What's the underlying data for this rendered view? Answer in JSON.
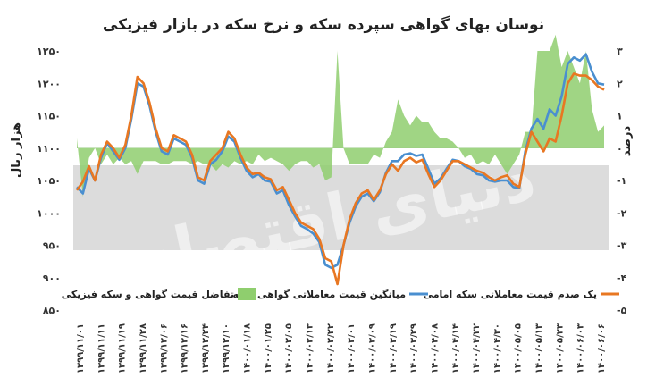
{
  "chart_data": {
    "type": "line",
    "title": "نوسان بهای گواهی سپرده سکه و نرخ سکه در بازار فیزیکی",
    "ylabel_left": "هزار ریال",
    "ylabel_right": "درصد",
    "ylim_left": [
      850,
      1250
    ],
    "ylim_right": [
      -5,
      3
    ],
    "yticks_left": [
      "۸۵۰",
      "۹۰۰",
      "۹۵۰",
      "۱۰۰۰",
      "۱۰۵۰",
      "۱۱۰۰",
      "۱۱۵۰",
      "۱۲۰۰",
      "۱۲۵۰"
    ],
    "yticks_right": [
      "-۵",
      "-۴",
      "-۳",
      "-۲",
      "-۱",
      "۰",
      "۱",
      "۲",
      "۳"
    ],
    "x_tick_labels": [
      "۱۳۹۹/۱۱/۰۱",
      "۱۳۹۹/۱۱/۱۱",
      "۱۳۹۹/۱۱/۱۹",
      "۱۳۹۹/۱۱/۲۸",
      "۱۳۹۹/۱۲/۰۶",
      "۱۳۹۹/۱۲/۱۶",
      "۱۳۹۹/۱۲/۲۴",
      "۱۳۹۹/۱۲/۱۰",
      "۱۴۰۰/۰۱/۱۸",
      "۱۴۰۰/۰۱/۲۵",
      "۱۴۰۰/۰۲/۰۵",
      "۱۴۰۰/۰۲/۱۳",
      "۱۴۰۰/۰۲/۲۲",
      "۱۴۰۰/۰۳/۰۱",
      "۱۴۰۰/۰۳/۰۹",
      "۱۴۰۰/۰۳/۱۹",
      "۱۴۰۰/۰۳/۲۹",
      "۱۴۰۰/۰۴/۰۸",
      "۱۴۰۰/۰۴/۱۴",
      "۱۴۰۰/۰۴/۲۲",
      "۱۴۰۰/۰۴/۳۰",
      "۱۴۰۰/۰۵/۰۵",
      "۱۴۰۰/۰۵/۱۳",
      "۱۴۰۰/۰۵/۲۳",
      "۱۴۰۰/۰۶/۰۳",
      "۱۴۰۰/۰۶/۰۶"
    ],
    "legend": [
      {
        "label": "یک صدم قیمت معاملاتی سکه امامی",
        "color": "#e87722",
        "kind": "line"
      },
      {
        "label": "میانگین قیمت معاملاتی گواهی سکه",
        "color": "#4a8fd0",
        "kind": "line"
      },
      {
        "label": "تفاضل قیمت گواهی و سکه فیزیکی",
        "color": "#8fce6e",
        "kind": "area"
      }
    ],
    "series": [
      {
        "name": "یک صدم قیمت معاملاتی سکه امامی",
        "color": "#e87722",
        "axis": "left",
        "values": [
          1035,
          1048,
          1072,
          1050,
          1090,
          1110,
          1100,
          1085,
          1105,
          1150,
          1210,
          1200,
          1170,
          1130,
          1100,
          1095,
          1120,
          1115,
          1110,
          1090,
          1055,
          1050,
          1080,
          1090,
          1100,
          1125,
          1115,
          1090,
          1070,
          1060,
          1062,
          1055,
          1052,
          1035,
          1040,
          1020,
          1000,
          985,
          980,
          975,
          960,
          930,
          925,
          890,
          950,
          990,
          1015,
          1030,
          1035,
          1020,
          1035,
          1060,
          1075,
          1065,
          1080,
          1085,
          1078,
          1082,
          1060,
          1040,
          1050,
          1065,
          1080,
          1080,
          1075,
          1070,
          1065,
          1062,
          1055,
          1050,
          1055,
          1058,
          1045,
          1040,
          1090,
          1125,
          1110,
          1095,
          1115,
          1110,
          1150,
          1200,
          1215,
          1212,
          1212,
          1205,
          1195,
          1190
        ]
      },
      {
        "name": "میانگین قیمت معاملاتی گواهی سکه",
        "color": "#4a8fd0",
        "axis": "left",
        "values": [
          1040,
          1030,
          1068,
          1050,
          1085,
          1108,
          1095,
          1082,
          1100,
          1145,
          1200,
          1195,
          1165,
          1125,
          1095,
          1090,
          1115,
          1110,
          1105,
          1085,
          1050,
          1045,
          1075,
          1082,
          1095,
          1118,
          1110,
          1085,
          1065,
          1055,
          1060,
          1050,
          1048,
          1030,
          1035,
          1012,
          995,
          980,
          975,
          968,
          955,
          920,
          915,
          920,
          950,
          985,
          1010,
          1025,
          1030,
          1018,
          1032,
          1062,
          1080,
          1080,
          1090,
          1092,
          1088,
          1090,
          1068,
          1045,
          1053,
          1068,
          1082,
          1080,
          1072,
          1068,
          1060,
          1058,
          1050,
          1048,
          1050,
          1050,
          1040,
          1038,
          1095,
          1130,
          1145,
          1130,
          1160,
          1150,
          1180,
          1230,
          1240,
          1235,
          1245,
          1218,
          1200,
          1198
        ]
      },
      {
        "name": "تفاضل قیمت گواهی و سکه فیزیکی",
        "color": "#8fce6e",
        "axis": "right",
        "values": [
          0.3,
          -1.5,
          -0.3,
          0.0,
          -0.5,
          -0.2,
          -0.5,
          -0.3,
          -0.5,
          -0.4,
          -0.8,
          -0.4,
          -0.4,
          -0.4,
          -0.5,
          -0.5,
          -0.4,
          -0.4,
          -0.4,
          -0.5,
          -0.4,
          -0.5,
          -0.5,
          -0.7,
          -0.5,
          -0.6,
          -0.4,
          -0.5,
          -0.4,
          -0.5,
          -0.2,
          -0.4,
          -0.3,
          -0.4,
          -0.5,
          -0.7,
          -0.5,
          -0.4,
          -0.4,
          -0.6,
          -0.5,
          -1.0,
          -0.9,
          3.0,
          0.0,
          -0.5,
          -0.5,
          -0.5,
          -0.5,
          -0.2,
          -0.3,
          0.2,
          0.5,
          1.5,
          1.0,
          0.7,
          1.0,
          0.8,
          0.8,
          0.5,
          0.3,
          0.3,
          0.2,
          0.0,
          -0.3,
          -0.2,
          -0.5,
          -0.4,
          -0.5,
          -0.2,
          -0.5,
          -0.8,
          -0.5,
          -0.2,
          0.5,
          0.5,
          3.0,
          3.0,
          3.0,
          3.5,
          2.5,
          3.0,
          2.5,
          2.0,
          3.0,
          1.2,
          0.5,
          0.7
        ]
      }
    ],
    "watermark": "دنیای اقتصاد"
  }
}
